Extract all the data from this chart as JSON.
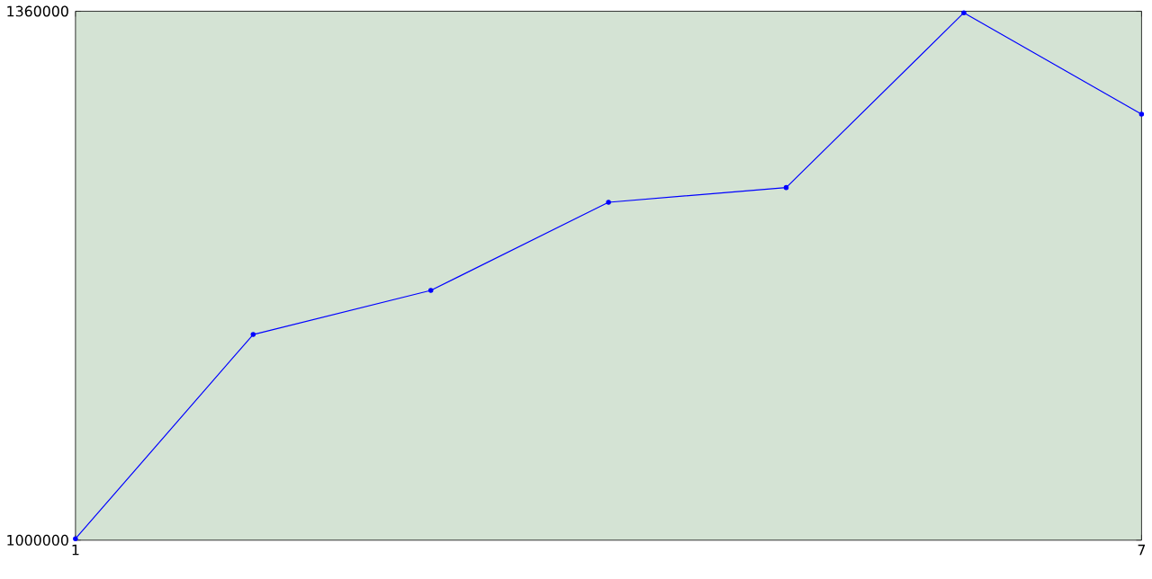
{
  "chart_data": {
    "type": "line",
    "x": [
      1,
      2,
      3,
      4,
      5,
      6,
      7
    ],
    "series": [
      {
        "color": "#0000ff",
        "values": [
          1001000,
          1140000,
          1170000,
          1230000,
          1240000,
          1359000,
          1290000
        ]
      }
    ],
    "xlim": [
      1,
      7
    ],
    "xticks": [
      1,
      7
    ],
    "ylim": [
      1000000,
      1360000
    ],
    "yticks": [
      1000000,
      1360000
    ],
    "marker": "circle",
    "line_style": "solid"
  }
}
